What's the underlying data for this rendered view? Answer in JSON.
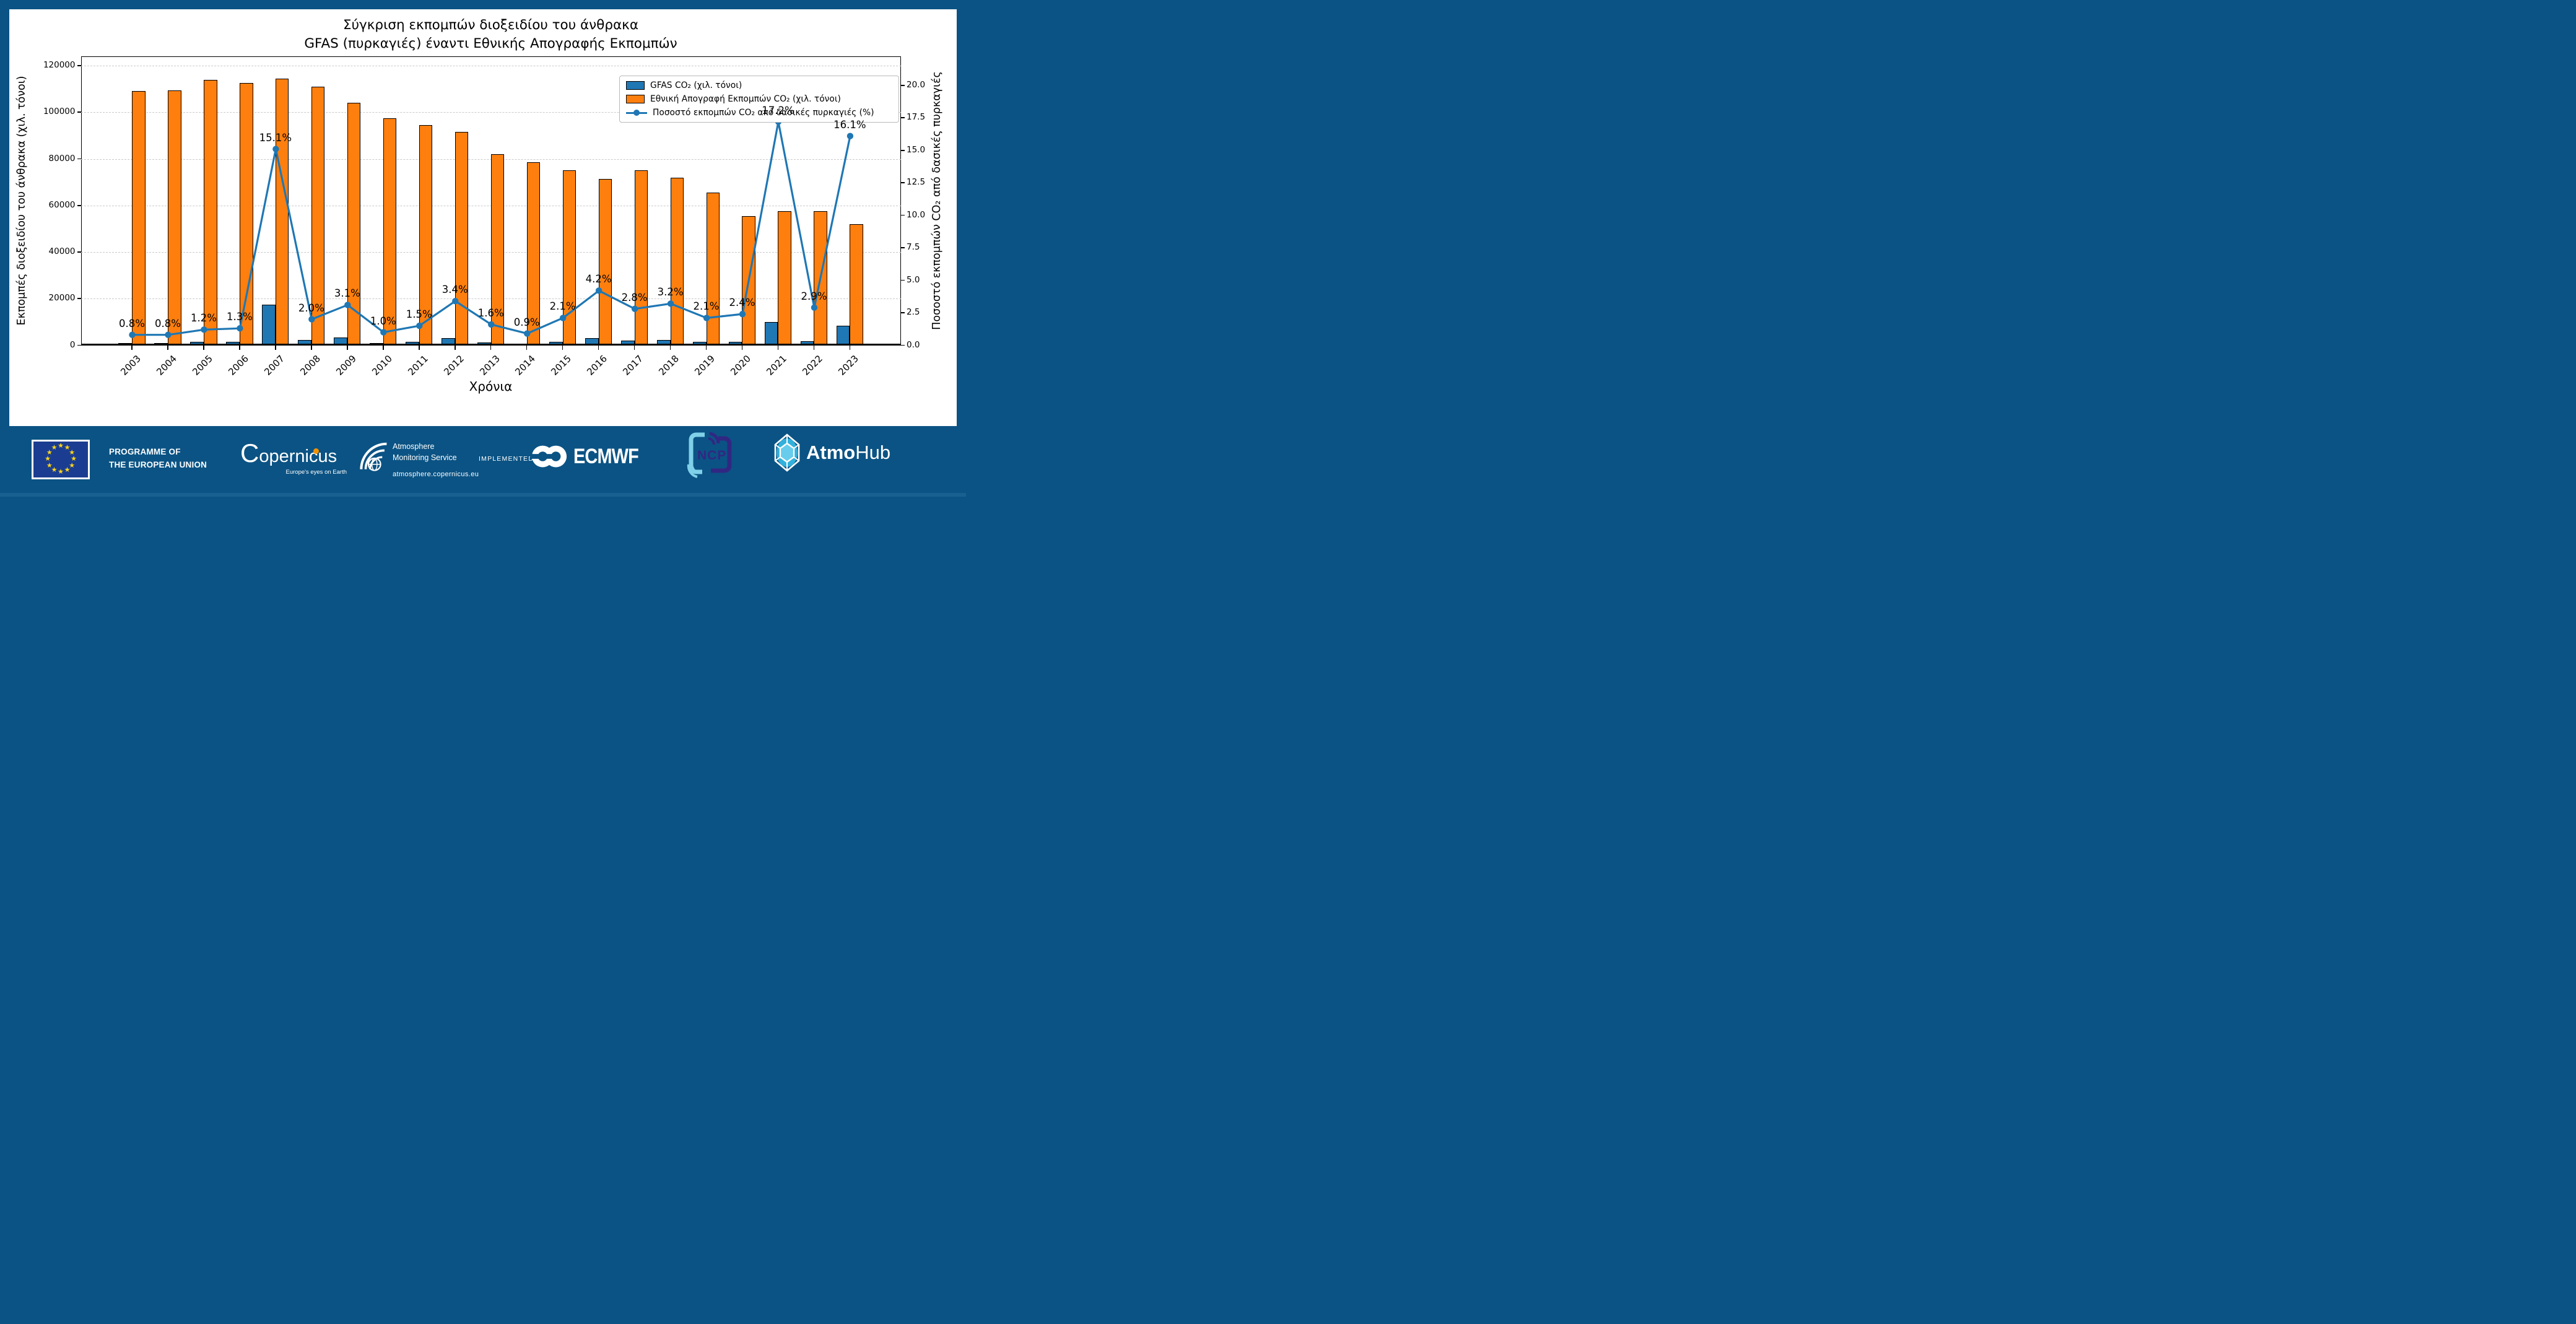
{
  "palette": {
    "frame": "#0b5384",
    "footer_bg": "#0b5384",
    "strip": "#176090",
    "bar_blue": "#1f77b4",
    "bar_orange": "#ff7f0e",
    "grid_gray": "#c9c9c9",
    "eu_flag_blue": "#1b3d91",
    "star_yellow": "#ffd617",
    "copernicus_orange": "#f39200",
    "atmohub_cyan": "#35b6e0",
    "ncp_purple": "#312783",
    "ncp_lightblue": "#7fd0e8"
  },
  "chart_data": {
    "type": "bar+line",
    "title_line1": "Σύγκριση εκπομπών διοξειδίου του άνθρακα",
    "title_line2": "GFAS (πυρκαγιές) έναντι Εθνικής Απογραφής Εκπομπών",
    "xlabel": "Χρόνια",
    "ylabel_left": "Εκπομπές διοξειδίου του άνθρακα (χιλ. τόνοι)",
    "ylabel_right": "Ποσοστό εκπομπών CO₂ από δασικές πυρκαγιές",
    "categories": [
      "2003",
      "2004",
      "2005",
      "2006",
      "2007",
      "2008",
      "2009",
      "2010",
      "2011",
      "2012",
      "2013",
      "2014",
      "2015",
      "2016",
      "2017",
      "2018",
      "2019",
      "2020",
      "2021",
      "2022",
      "2023"
    ],
    "series": [
      {
        "name": "GFAS CO₂ (χιλ. τόνοι)",
        "type": "bar",
        "axis": "left",
        "color": "#1f77b4",
        "values": [
          870,
          880,
          1370,
          1460,
          17290,
          2220,
          3220,
          980,
          1420,
          3110,
          1310,
          710,
          1580,
          3000,
          2100,
          2300,
          1380,
          1330,
          9900,
          1680,
          8370
        ]
      },
      {
        "name": "Εθνική Απογραφή Εκπομπών CO₂ (χιλ. τόνοι)",
        "type": "bar",
        "axis": "left",
        "color": "#ff7f0e",
        "values": [
          109000,
          109500,
          114000,
          112500,
          114500,
          111000,
          104000,
          97500,
          94500,
          91500,
          82000,
          78500,
          75000,
          71500,
          75000,
          72000,
          65500,
          55500,
          57500,
          57500,
          52000
        ]
      },
      {
        "name": "Ποσοστό εκπομπών CO₂ από δασικές πυρκαγιές (%)",
        "type": "line",
        "axis": "right",
        "color": "#1f77b4",
        "values": [
          0.8,
          0.8,
          1.2,
          1.3,
          15.1,
          2.0,
          3.1,
          1.0,
          1.5,
          3.4,
          1.6,
          0.9,
          2.1,
          4.2,
          2.8,
          3.2,
          2.1,
          2.4,
          17.2,
          2.9,
          16.1
        ],
        "point_labels": [
          "0.8%",
          "0.8%",
          "1.2%",
          "1.3%",
          "15.1%",
          "2.0%",
          "3.1%",
          "1.0%",
          "1.5%",
          "3.4%",
          "1.6%",
          "0.9%",
          "2.1%",
          "4.2%",
          "2.8%",
          "3.2%",
          "2.1%",
          "2.4%",
          "17.2%",
          "2.9%",
          "16.1%"
        ]
      }
    ],
    "ylim_left": [
      0,
      124000
    ],
    "ylim_right": [
      0,
      22.23
    ],
    "yticks_left": [
      0,
      20000,
      40000,
      60000,
      80000,
      100000,
      120000
    ],
    "yticks_right": [
      0.0,
      2.5,
      5.0,
      7.5,
      10.0,
      12.5,
      15.0,
      17.5,
      20.0
    ],
    "grid": true,
    "legend_position": "upper right"
  },
  "footer": {
    "eu": {
      "line1": "PROGRAMME OF",
      "line2": "THE EUROPEAN UNION"
    },
    "copernicus": {
      "c": "C",
      "rest": "opernicus",
      "tagline": "Europe's eyes on Earth"
    },
    "ams": {
      "line1": "Atmosphere",
      "line2": "Monitoring Service",
      "url": "atmosphere.copernicus.eu"
    },
    "implemented_by": "IMPLEMENTED BY",
    "ecmwf": "ECMWF",
    "ncp": "NCP",
    "atmohub": {
      "bold": "Atmo",
      "light": "Hub"
    }
  }
}
